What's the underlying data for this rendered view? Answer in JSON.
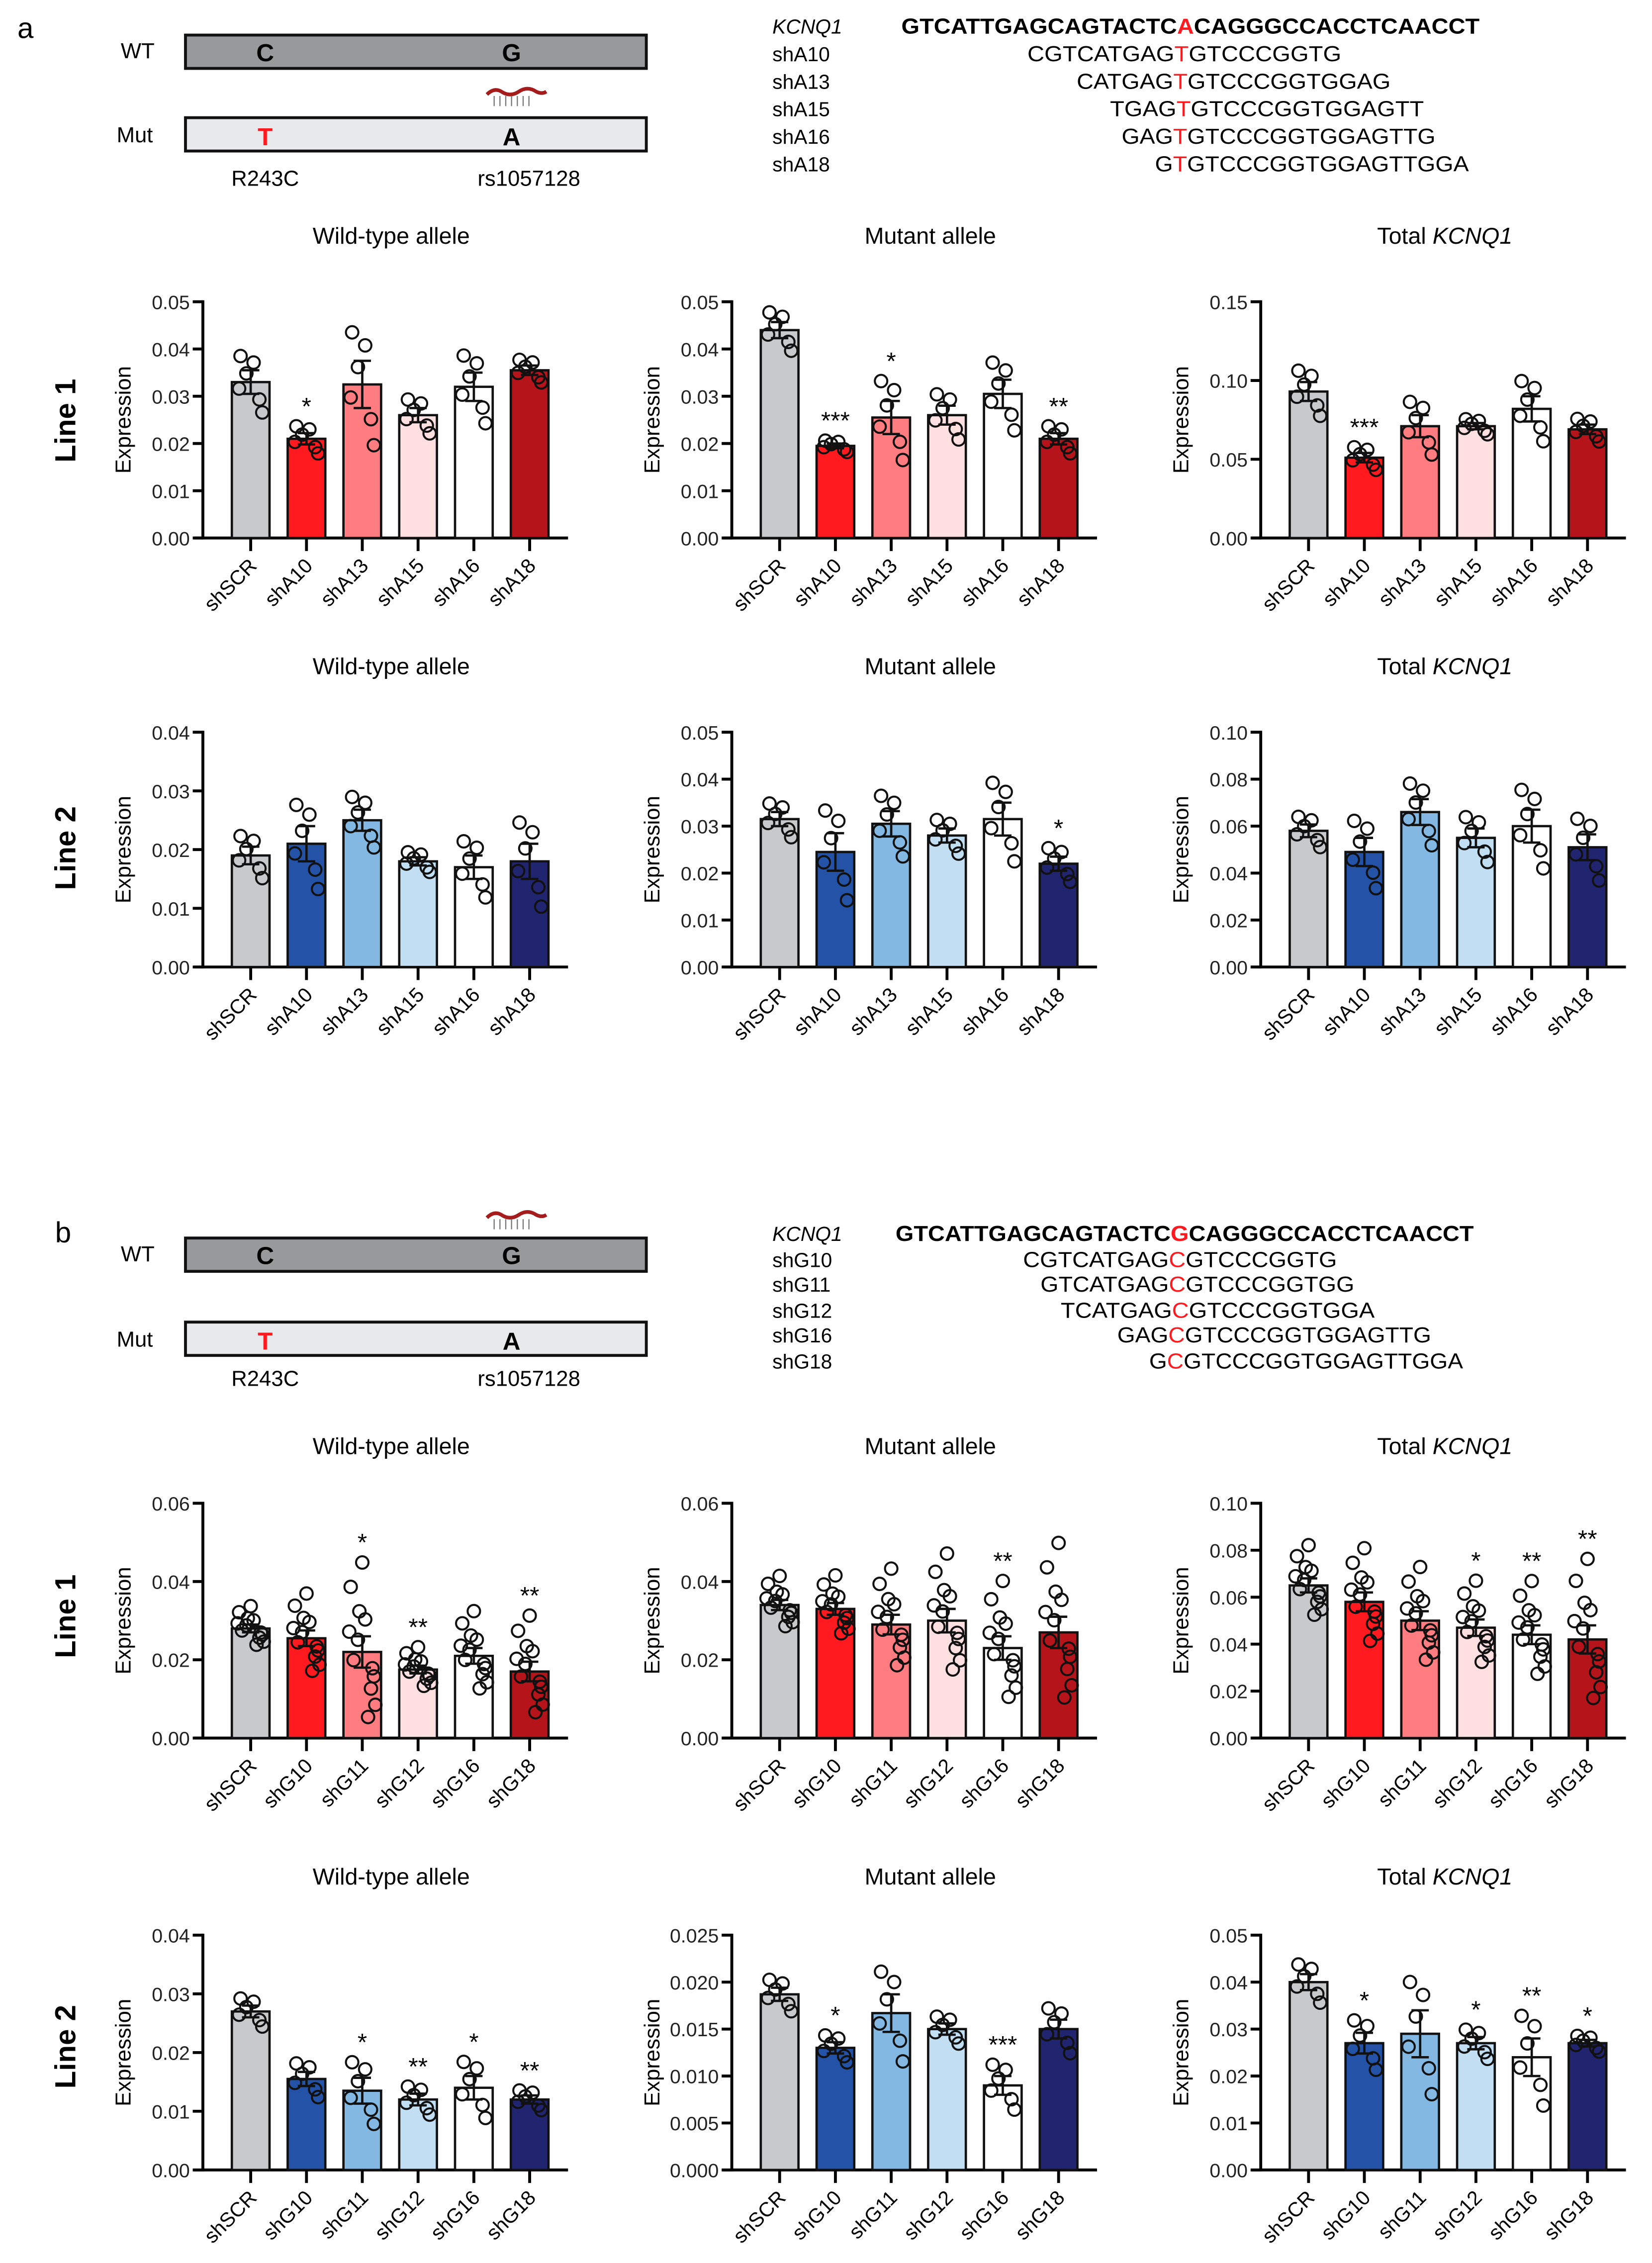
{
  "panels": [
    {
      "letter": "a",
      "schematic": {
        "wt_label": "WT",
        "mut_label": "Mut",
        "wt_bases": [
          "C",
          "G"
        ],
        "mut_bases": [
          "T",
          "A"
        ],
        "variant_labels": [
          "R243C",
          "rs1057128"
        ],
        "hairpin_on": "mut"
      },
      "alignment": [
        {
          "label": "KCNQ1",
          "pre": "GTCATTGAGCAGTACTC",
          "mid": "A",
          "post": "CAGGGCCACCTCAACCT",
          "reference": true
        },
        {
          "label": "shA10",
          "pre": "CGTCATGAG",
          "mid": "T",
          "post": "GTCCCGGTG"
        },
        {
          "label": "shA13",
          "pre": "CATGAG",
          "mid": "T",
          "post": "GTCCCGGTGGAG"
        },
        {
          "label": "shA15",
          "pre": "TGAG",
          "mid": "T",
          "post": "GTCCCGGTGGAGTT"
        },
        {
          "label": "shA16",
          "pre": "GAG",
          "mid": "T",
          "post": "GTCCCGGTGGAGTTG"
        },
        {
          "label": "shA18",
          "pre": "G",
          "mid": "T",
          "post": "GTCCCGGTGGAGTTGGA"
        }
      ]
    },
    {
      "letter": "b",
      "schematic": {
        "wt_label": "WT",
        "mut_label": "Mut",
        "wt_bases": [
          "C",
          "G"
        ],
        "mut_bases": [
          "T",
          "A"
        ],
        "variant_labels": [
          "R243C",
          "rs1057128"
        ],
        "hairpin_on": "wt"
      },
      "alignment": [
        {
          "label": "KCNQ1",
          "pre": "GTCATTGAGCAGTACTC",
          "mid": "G",
          "post": "CAGGGCCACCTCAACCT",
          "reference": true
        },
        {
          "label": "shG10",
          "pre": "CGTCATGAG",
          "mid": "C",
          "post": "GTCCCGGTG"
        },
        {
          "label": "shG11",
          "pre": "GTCATGAG",
          "mid": "C",
          "post": "GTCCCGGTGG"
        },
        {
          "label": "shG12",
          "pre": "TCATGAG",
          "mid": "C",
          "post": "GTCCCGGTGGA"
        },
        {
          "label": "shG16",
          "pre": "GAG",
          "mid": "C",
          "post": "GTCCCGGTGGAGTTG"
        },
        {
          "label": "shG18",
          "pre": "G",
          "mid": "C",
          "post": "GTCCCGGTGGAGTTGGA"
        }
      ]
    }
  ],
  "row_labels": [
    "Line 1",
    "Line 2",
    "Line 1",
    "Line 2"
  ],
  "colors": {
    "red": [
      "#c8c9cb",
      "#ff1a1f",
      "#ff7d80",
      "#ffdfe0",
      "#ffffff",
      "#b5151a"
    ],
    "blue": [
      "#c8c9cb",
      "#2452a6",
      "#82b8e2",
      "#c2def3",
      "#ffffff",
      "#21246f"
    ],
    "highlight": "#ff1a1f",
    "wt_bar": "#98999b",
    "mut_bar": "#e8e9ea",
    "hairpin": "#a51c1c"
  },
  "chart_data": [
    {
      "type": "bar",
      "title": "Wild-type allele",
      "ylabel": "Expression",
      "palette": "red",
      "n": 6,
      "categories": [
        "shSCR",
        "shA10",
        "shA13",
        "shA15",
        "shA16",
        "shA18"
      ],
      "values": [
        0.033,
        0.021,
        0.0325,
        0.026,
        0.032,
        0.0355
      ],
      "sem": [
        0.0025,
        0.0012,
        0.005,
        0.0015,
        0.003,
        0.001
      ],
      "significance": [
        "",
        "*",
        "",
        "",
        "",
        ""
      ],
      "ylim": [
        0,
        0.05
      ],
      "yticks": [
        "0.00",
        "0.01",
        "0.02",
        "0.03",
        "0.04",
        "0.05"
      ]
    },
    {
      "type": "bar",
      "title": "Mutant allele",
      "ylabel": "Expression",
      "palette": "red",
      "n": 6,
      "categories": [
        "shSCR",
        "shA10",
        "shA13",
        "shA15",
        "shA16",
        "shA18"
      ],
      "values": [
        0.044,
        0.0195,
        0.0255,
        0.026,
        0.0305,
        0.021
      ],
      "sem": [
        0.0017,
        0.0005,
        0.0035,
        0.002,
        0.003,
        0.0012
      ],
      "significance": [
        "",
        "***",
        "*",
        "",
        "",
        "**"
      ],
      "ylim": [
        0,
        0.05
      ],
      "yticks": [
        "0.00",
        "0.01",
        "0.02",
        "0.03",
        "0.04",
        "0.05"
      ]
    },
    {
      "type": "bar",
      "title": "Total KCNQ1",
      "ylabel": "Expression",
      "palette": "red",
      "n": 6,
      "categories": [
        "shSCR",
        "shA10",
        "shA13",
        "shA15",
        "shA16",
        "shA18"
      ],
      "values": [
        0.093,
        0.051,
        0.071,
        0.071,
        0.082,
        0.069
      ],
      "sem": [
        0.006,
        0.003,
        0.007,
        0.002,
        0.008,
        0.003
      ],
      "significance": [
        "",
        "***",
        "",
        "",
        "",
        ""
      ],
      "ylim": [
        0,
        0.15
      ],
      "yticks": [
        "0.00",
        "0.05",
        "0.10",
        "0.15"
      ]
    },
    {
      "type": "bar",
      "title": "Wild-type allele",
      "ylabel": "Expression",
      "palette": "blue",
      "n": 6,
      "categories": [
        "shSCR",
        "shA10",
        "shA13",
        "shA15",
        "shA16",
        "shA18"
      ],
      "values": [
        0.019,
        0.021,
        0.025,
        0.018,
        0.017,
        0.018
      ],
      "sem": [
        0.0015,
        0.003,
        0.0018,
        0.0007,
        0.002,
        0.003
      ],
      "significance": [
        "",
        "",
        "",
        "",
        "",
        ""
      ],
      "ylim": [
        0,
        0.04
      ],
      "yticks": [
        "0.00",
        "0.01",
        "0.02",
        "0.03",
        "0.04"
      ]
    },
    {
      "type": "bar",
      "title": "Mutant allele",
      "ylabel": "Expression",
      "palette": "blue",
      "n": 6,
      "categories": [
        "shSCR",
        "shA10",
        "shA13",
        "shA15",
        "shA16",
        "shA18"
      ],
      "values": [
        0.0315,
        0.0245,
        0.0305,
        0.028,
        0.0315,
        0.022
      ],
      "sem": [
        0.0015,
        0.004,
        0.0027,
        0.0015,
        0.0035,
        0.0015
      ],
      "significance": [
        "",
        "",
        "",
        "",
        "",
        "*"
      ],
      "ylim": [
        0,
        0.05
      ],
      "yticks": [
        "0.00",
        "0.01",
        "0.02",
        "0.03",
        "0.04",
        "0.05"
      ]
    },
    {
      "type": "bar",
      "title": "Total KCNQ1",
      "ylabel": "Expression",
      "palette": "blue",
      "n": 6,
      "categories": [
        "shSCR",
        "shA10",
        "shA13",
        "shA15",
        "shA16",
        "shA18"
      ],
      "values": [
        0.058,
        0.049,
        0.066,
        0.055,
        0.06,
        0.051
      ],
      "sem": [
        0.0027,
        0.006,
        0.0055,
        0.004,
        0.007,
        0.0055
      ],
      "significance": [
        "",
        "",
        "",
        "",
        "",
        ""
      ],
      "ylim": [
        0,
        0.1
      ],
      "yticks": [
        "0.00",
        "0.02",
        "0.04",
        "0.06",
        "0.08",
        "0.10"
      ]
    },
    {
      "type": "bar",
      "title": "Wild-type allele",
      "ylabel": "Expression",
      "palette": "red",
      "n": 12,
      "categories": [
        "shSCR",
        "shG10",
        "shG11",
        "shG12",
        "shG16",
        "shG18"
      ],
      "values": [
        0.028,
        0.0255,
        0.022,
        0.0175,
        0.021,
        0.017
      ],
      "sem": [
        0.001,
        0.002,
        0.004,
        0.001,
        0.002,
        0.0025
      ],
      "significance": [
        "",
        "",
        "*",
        "**",
        "",
        "**"
      ],
      "ylim": [
        0,
        0.06
      ],
      "yticks": [
        "0.00",
        "0.02",
        "0.04",
        "0.06"
      ]
    },
    {
      "type": "bar",
      "title": "Mutant allele",
      "ylabel": "Expression",
      "palette": "red",
      "n": 12,
      "categories": [
        "shSCR",
        "shG10",
        "shG11",
        "shG12",
        "shG16",
        "shG18"
      ],
      "values": [
        0.034,
        0.033,
        0.029,
        0.03,
        0.023,
        0.027
      ],
      "sem": [
        0.0013,
        0.0015,
        0.0025,
        0.003,
        0.003,
        0.004
      ],
      "significance": [
        "",
        "",
        "",
        "",
        "**",
        ""
      ],
      "ylim": [
        0,
        0.06
      ],
      "yticks": [
        "0.00",
        "0.02",
        "0.04",
        "0.06"
      ]
    },
    {
      "type": "bar",
      "title": "Total KCNQ1",
      "ylabel": "Expression",
      "palette": "red",
      "n": 12,
      "categories": [
        "shSCR",
        "shG10",
        "shG11",
        "shG12",
        "shG16",
        "shG18"
      ],
      "values": [
        0.065,
        0.058,
        0.05,
        0.047,
        0.044,
        0.042
      ],
      "sem": [
        0.003,
        0.004,
        0.004,
        0.0035,
        0.004,
        0.006
      ],
      "significance": [
        "",
        "",
        "",
        "*",
        "**",
        "**"
      ],
      "ylim": [
        0,
        0.1
      ],
      "yticks": [
        "0.00",
        "0.02",
        "0.04",
        "0.06",
        "0.08",
        "0.10"
      ]
    },
    {
      "type": "bar",
      "title": "Wild-type allele",
      "ylabel": "Expression",
      "palette": "blue",
      "n": 6,
      "categories": [
        "shSCR",
        "shG10",
        "shG11",
        "shG12",
        "shG16",
        "shG18"
      ],
      "values": [
        0.027,
        0.0155,
        0.0135,
        0.012,
        0.014,
        0.012
      ],
      "sem": [
        0.001,
        0.0012,
        0.0022,
        0.001,
        0.002,
        0.0007
      ],
      "significance": [
        "",
        "",
        "*",
        "**",
        "*",
        "**"
      ],
      "ylim": [
        0,
        0.04
      ],
      "yticks": [
        "0.00",
        "0.01",
        "0.02",
        "0.03",
        "0.04"
      ]
    },
    {
      "type": "bar",
      "title": "Mutant allele",
      "ylabel": "Expression",
      "palette": "blue",
      "n": 6,
      "categories": [
        "shSCR",
        "shG10",
        "shG11",
        "shG12",
        "shG16",
        "shG18"
      ],
      "values": [
        0.0187,
        0.013,
        0.0167,
        0.015,
        0.009,
        0.015
      ],
      "sem": [
        0.0007,
        0.0006,
        0.002,
        0.0006,
        0.001,
        0.001
      ],
      "significance": [
        "",
        "*",
        "",
        "",
        "***",
        ""
      ],
      "ylim": [
        0,
        0.025
      ],
      "yticks": [
        "0.000",
        "0.005",
        "0.010",
        "0.015",
        "0.020",
        "0.025"
      ]
    },
    {
      "type": "bar",
      "title": "Total KCNQ1",
      "ylabel": "Expression",
      "palette": "blue",
      "n": 6,
      "categories": [
        "shSCR",
        "shG10",
        "shG11",
        "shG12",
        "shG16",
        "shG18"
      ],
      "values": [
        0.04,
        0.027,
        0.029,
        0.027,
        0.024,
        0.027
      ],
      "sem": [
        0.0017,
        0.0022,
        0.005,
        0.0013,
        0.004,
        0.0007
      ],
      "significance": [
        "",
        "*",
        "",
        "*",
        "**",
        "*"
      ],
      "ylim": [
        0,
        0.05
      ],
      "yticks": [
        "0.00",
        "0.01",
        "0.02",
        "0.03",
        "0.04",
        "0.05"
      ]
    }
  ]
}
